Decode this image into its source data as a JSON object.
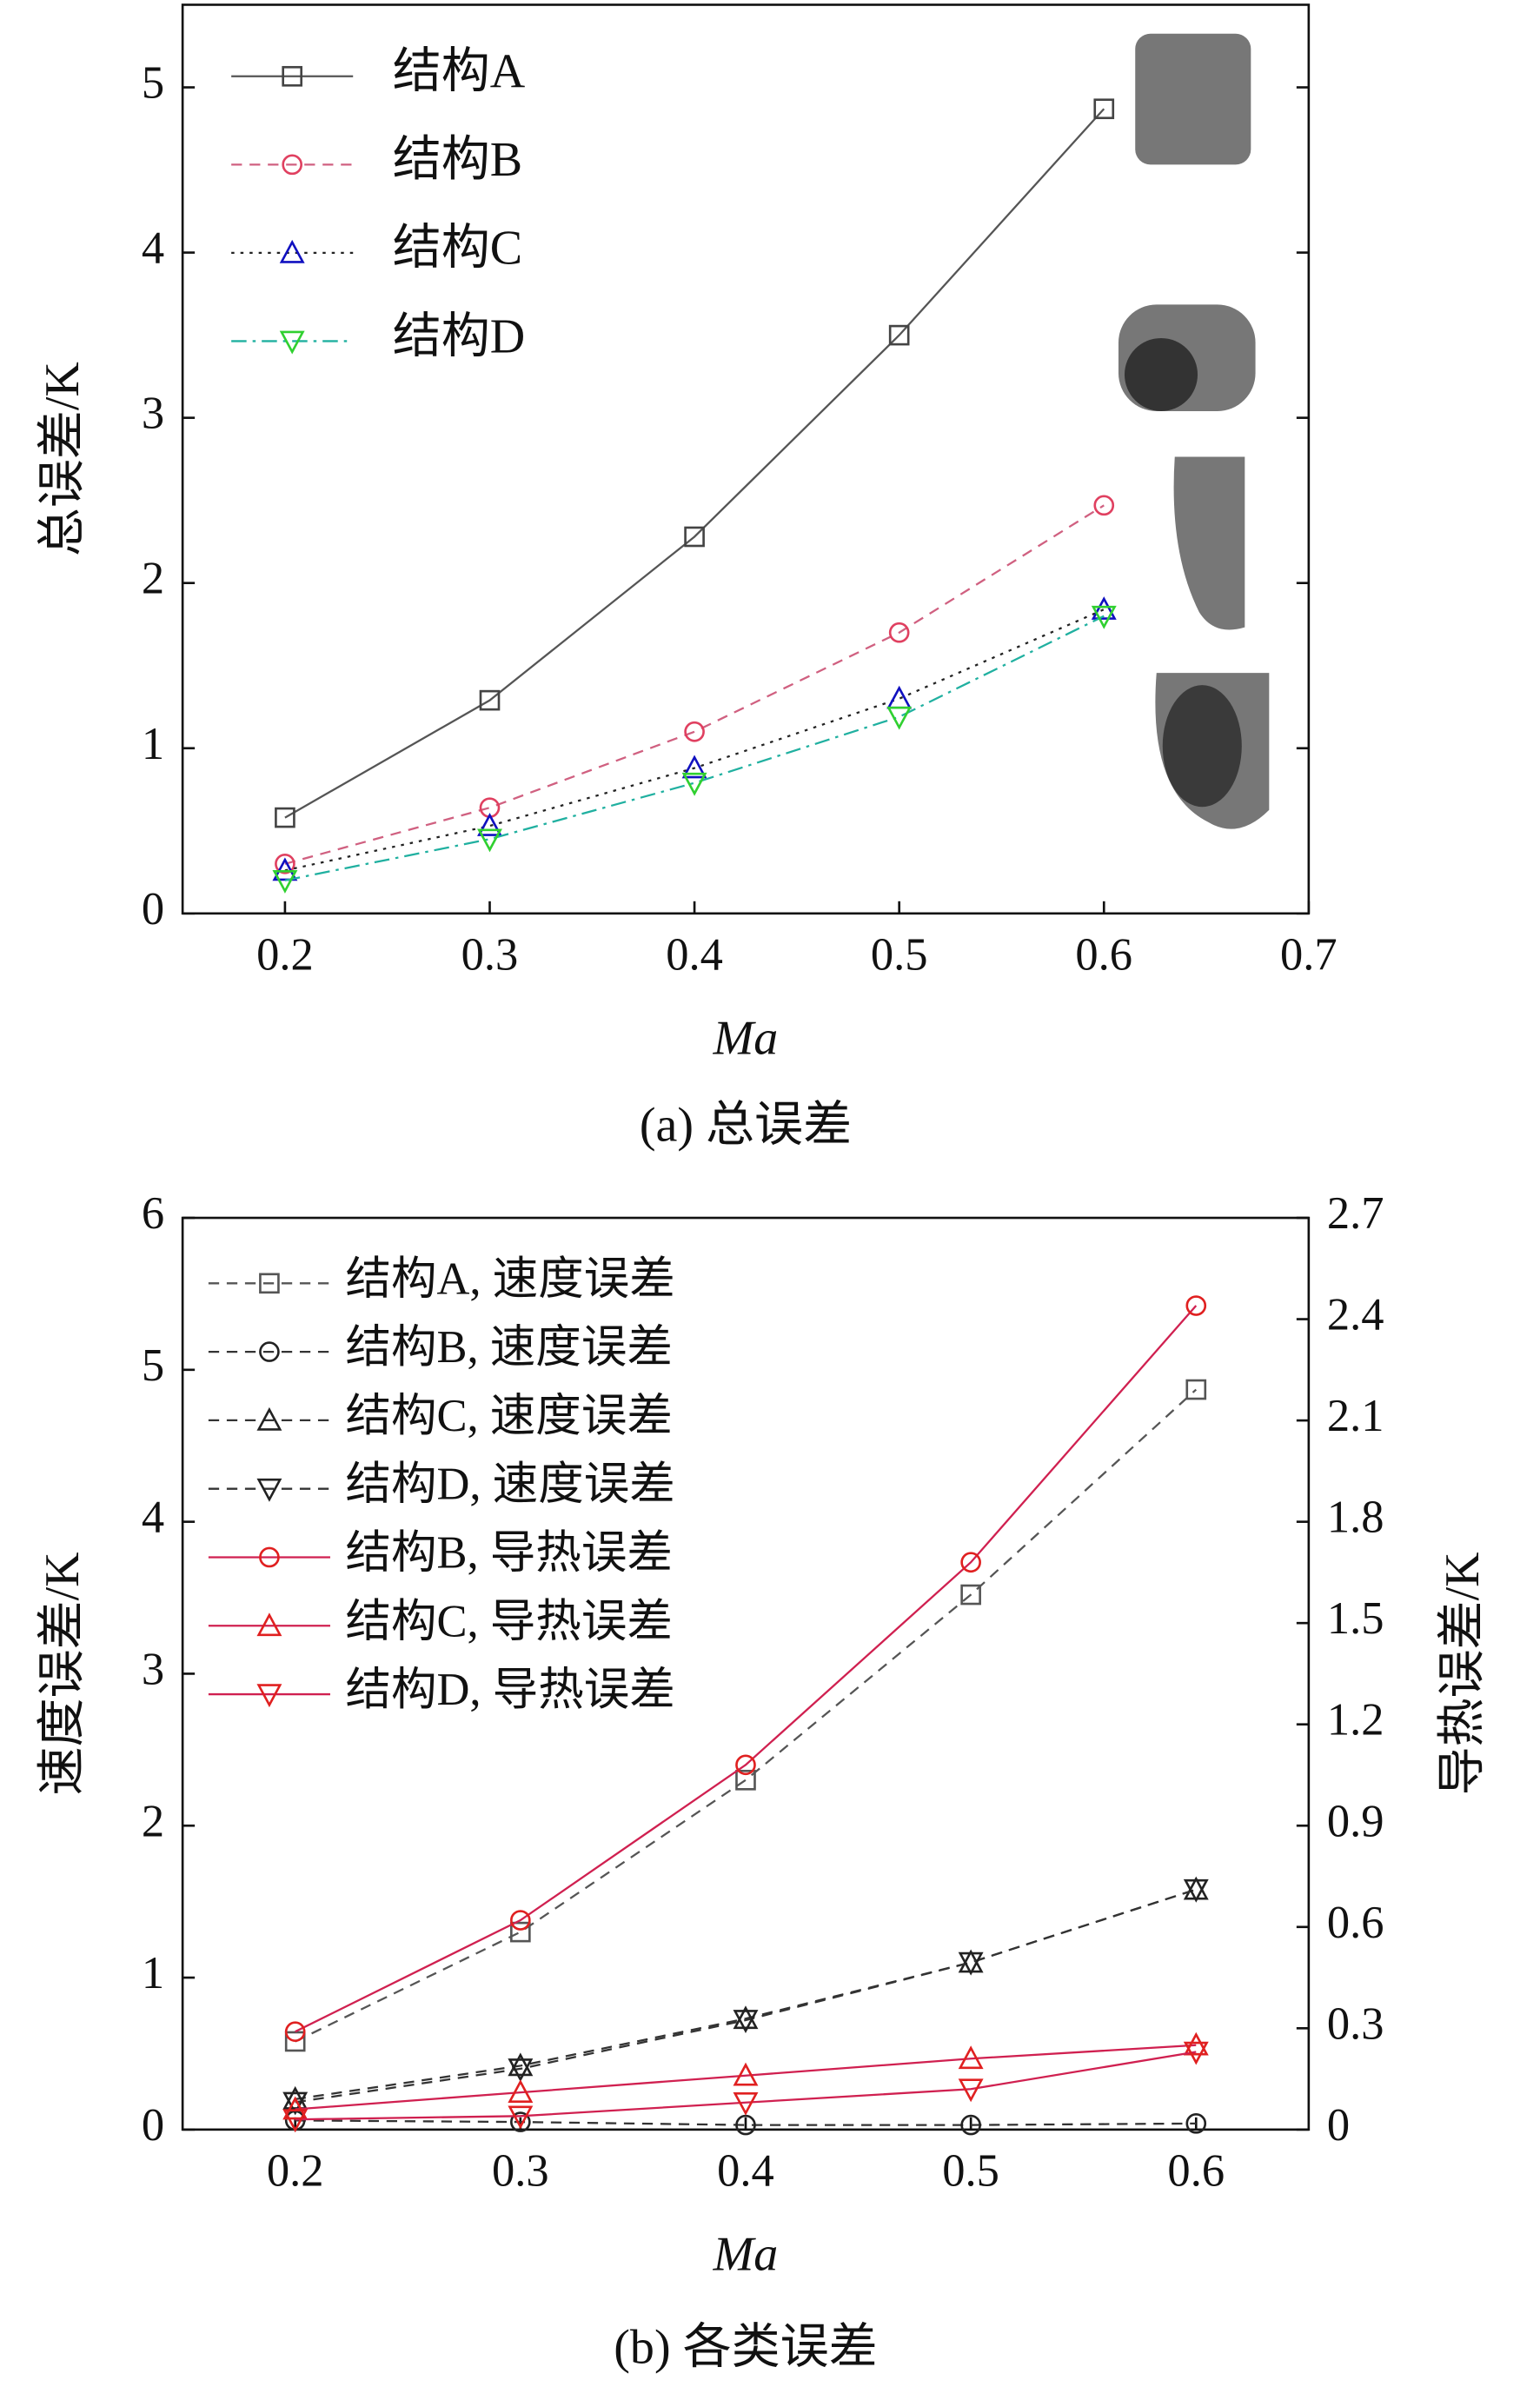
{
  "chart_data": [
    {
      "type": "line",
      "caption": "(a) 总误差",
      "xlabel": "Ma",
      "ylabel": "总误差/K",
      "x": [
        0.2,
        0.3,
        0.4,
        0.5,
        0.6
      ],
      "xlim": [
        0.15,
        0.7
      ],
      "xticks": [
        0.2,
        0.3,
        0.4,
        0.5,
        0.6,
        0.7
      ],
      "ylim": [
        0,
        5.5
      ],
      "yticks": [
        0,
        1,
        2,
        3,
        4,
        5
      ],
      "series": [
        {
          "name": "结构A",
          "color": "#555555",
          "marker_color": "#444444",
          "marker": "square",
          "dash": "solid",
          "values": [
            0.58,
            1.29,
            2.28,
            3.5,
            4.87
          ]
        },
        {
          "name": "结构B",
          "color": "#d06080",
          "marker_color": "#e04060",
          "marker": "circle",
          "dash": "dashed",
          "values": [
            0.3,
            0.64,
            1.1,
            1.7,
            2.47
          ]
        },
        {
          "name": "结构C",
          "color": "#222222",
          "marker_color": "#1010c0",
          "marker": "triangle",
          "dash": "dotted",
          "values": [
            0.26,
            0.53,
            0.88,
            1.3,
            1.84
          ]
        },
        {
          "name": "结构D",
          "color": "#20b0a0",
          "marker_color": "#30d030",
          "marker": "triangle-down",
          "dash": "dashdot",
          "values": [
            0.2,
            0.45,
            0.79,
            1.19,
            1.8
          ]
        }
      ]
    },
    {
      "type": "line",
      "caption": "(b) 各类误差",
      "xlabel": "Ma",
      "ylabel": "速度误差/K",
      "y2label": "导热误差/K",
      "x": [
        0.2,
        0.3,
        0.4,
        0.5,
        0.6
      ],
      "xlim": [
        0.15,
        0.65
      ],
      "xticks": [
        0.2,
        0.3,
        0.4,
        0.5,
        0.6
      ],
      "ylim": [
        0,
        6
      ],
      "yticks": [
        0,
        1,
        2,
        3,
        4,
        5,
        6
      ],
      "y2lim": [
        0,
        2.7
      ],
      "y2ticks": [
        0,
        0.3,
        0.6,
        0.9,
        1.2,
        1.5,
        1.8,
        2.1,
        2.4,
        2.7
      ],
      "series": [
        {
          "name": "结构A, 速度误差",
          "color": "#555555",
          "marker_color": "#555555",
          "marker": "square",
          "dash": "dashed",
          "values": [
            0.58,
            1.3,
            2.3,
            3.52,
            4.87
          ]
        },
        {
          "name": "结构B, 速度误差",
          "color": "#333333",
          "marker_color": "#222222",
          "marker": "circle",
          "dash": "dashed",
          "values": [
            0.06,
            0.05,
            0.03,
            0.03,
            0.04
          ]
        },
        {
          "name": "结构C, 速度误差",
          "color": "#333333",
          "marker_color": "#222222",
          "marker": "triangle",
          "dash": "dashed",
          "values": [
            0.2,
            0.42,
            0.73,
            1.1,
            1.58
          ]
        },
        {
          "name": "结构D, 速度误差",
          "color": "#333333",
          "marker_color": "#222222",
          "marker": "triangle-down",
          "dash": "dashed",
          "values": [
            0.18,
            0.4,
            0.72,
            1.1,
            1.58
          ]
        },
        {
          "name": "结构B, 导热误差",
          "color": "#d02050",
          "marker_color": "#e02020",
          "marker": "circle",
          "dash": "solid",
          "axis": "y2",
          "values": [
            0.29,
            0.62,
            1.08,
            1.68,
            2.44
          ]
        },
        {
          "name": "结构C, 导热误差",
          "color": "#d02050",
          "marker_color": "#e02020",
          "marker": "triangle",
          "dash": "solid",
          "axis": "y2",
          "values": [
            0.06,
            0.11,
            0.16,
            0.21,
            0.25
          ]
        },
        {
          "name": "结构D, 导热误差",
          "color": "#d02050",
          "marker_color": "#e02020",
          "marker": "triangle-down",
          "dash": "solid",
          "axis": "y2",
          "values": [
            0.03,
            0.04,
            0.08,
            0.12,
            0.23
          ]
        }
      ]
    }
  ]
}
